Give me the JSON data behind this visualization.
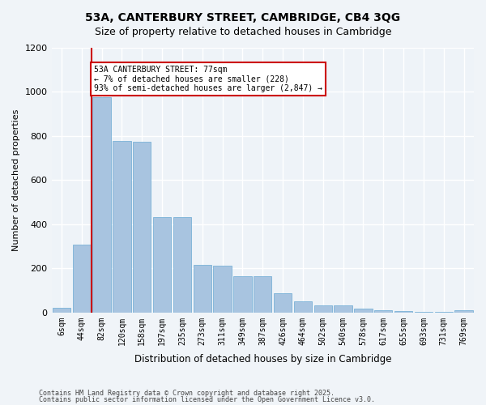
{
  "title_line1": "53A, CANTERBURY STREET, CAMBRIDGE, CB4 3QG",
  "title_line2": "Size of property relative to detached houses in Cambridge",
  "xlabel": "Distribution of detached houses by size in Cambridge",
  "ylabel": "Number of detached properties",
  "bar_color": "#a8c4e0",
  "bar_edge_color": "#6aaad4",
  "background_color": "#eef3f8",
  "grid_color": "#ffffff",
  "annotation_box_color": "#cc0000",
  "vline_color": "#cc0000",
  "categories": [
    "6sqm",
    "44sqm",
    "82sqm",
    "120sqm",
    "158sqm",
    "197sqm",
    "235sqm",
    "273sqm",
    "311sqm",
    "349sqm",
    "387sqm",
    "426sqm",
    "464sqm",
    "502sqm",
    "540sqm",
    "578sqm",
    "617sqm",
    "655sqm",
    "693sqm",
    "731sqm",
    "769sqm"
  ],
  "values": [
    22,
    308,
    975,
    778,
    775,
    432,
    432,
    215,
    213,
    165,
    165,
    88,
    50,
    32,
    32,
    18,
    10,
    5,
    3,
    2,
    10
  ],
  "ylim": [
    0,
    1200
  ],
  "yticks": [
    0,
    200,
    400,
    600,
    800,
    1000,
    1200
  ],
  "vline_x": 1.5,
  "annotation_text": "53A CANTERBURY STREET: 77sqm\n← 7% of detached houses are smaller (228)\n93% of semi-detached houses are larger (2,847) →",
  "footer_line1": "Contains HM Land Registry data © Crown copyright and database right 2025.",
  "footer_line2": "Contains public sector information licensed under the Open Government Licence v3.0."
}
